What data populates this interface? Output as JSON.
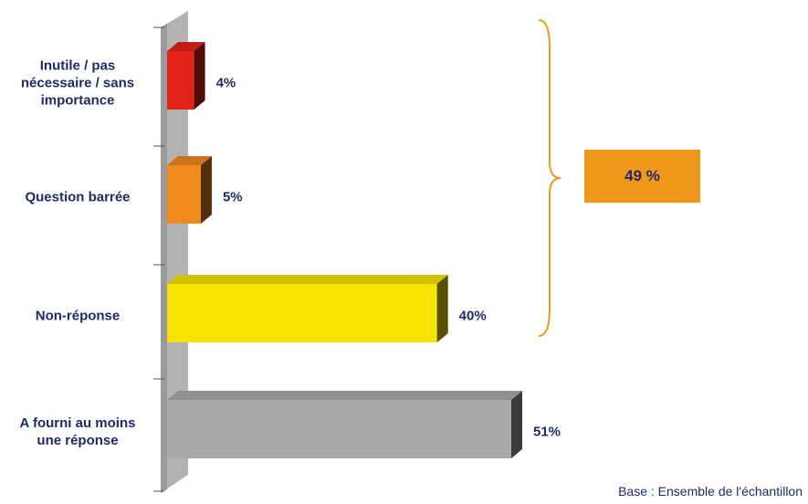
{
  "chart_data": {
    "type": "bar",
    "orientation": "horizontal",
    "style": "3d",
    "categories": [
      "Inutile / pas nécessaire / sans importance",
      "Question barrée",
      "Non-réponse",
      "A fourni au moins une réponse"
    ],
    "category_lines": [
      [
        "Inutile / pas",
        "nécessaire / sans",
        "importance"
      ],
      [
        "Question barrée"
      ],
      [
        "Non-réponse"
      ],
      [
        "A fourni au moins",
        "une réponse"
      ]
    ],
    "values": [
      4,
      5,
      40,
      51
    ],
    "value_labels": [
      "4%",
      "5%",
      "40%",
      "51%"
    ],
    "colors": [
      "#e2231a",
      "#ee8a1e",
      "#f5e400",
      "#a9a9a9"
    ],
    "xlim": [
      0,
      51
    ],
    "bracket": {
      "groups": [
        0,
        1,
        2
      ],
      "label": "49 %",
      "color": "#f0981c"
    },
    "note": "Base : Ensemble de l'échantillon"
  }
}
